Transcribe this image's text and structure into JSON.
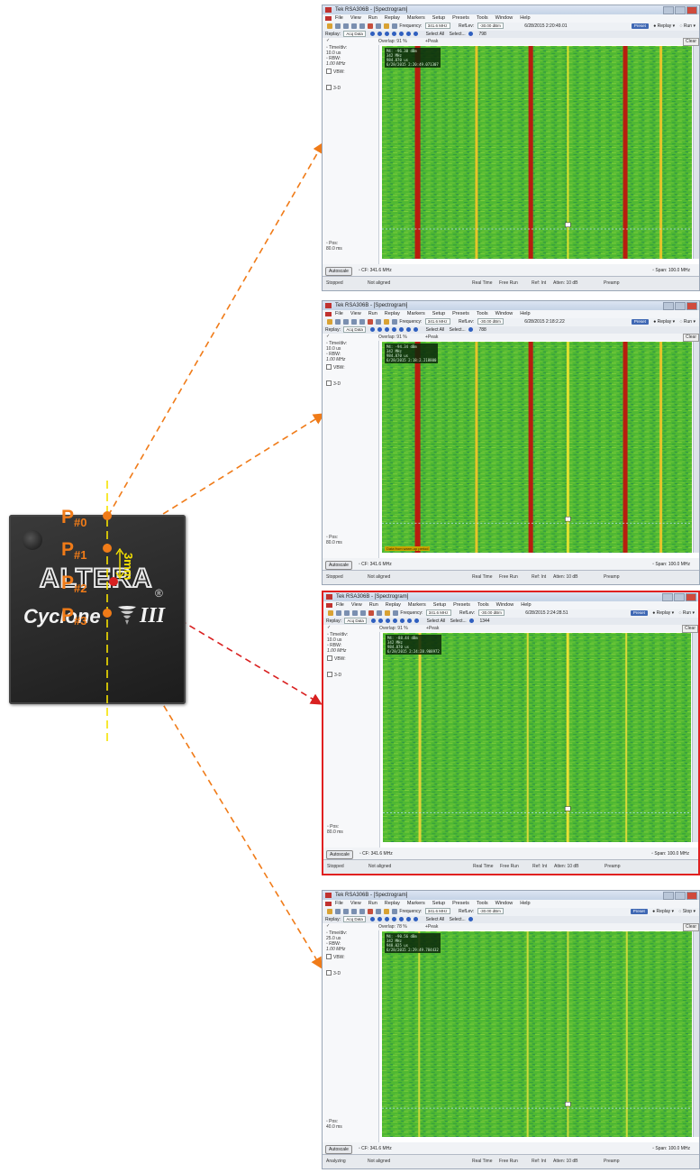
{
  "chip": {
    "brand": "ALTERA",
    "reg_mark": "®",
    "product": "Cyclone",
    "product_suffix": "III",
    "distance": "3mm",
    "probes": [
      {
        "prefix": "P",
        "sub": "#0"
      },
      {
        "prefix": "P",
        "sub": "#1"
      },
      {
        "prefix": "P",
        "sub": "#2"
      },
      {
        "prefix": "P",
        "sub": "#3"
      }
    ],
    "colors": {
      "probe": "#f07b18",
      "axis": "#f5e200",
      "highlight_arrow": "#d92020"
    }
  },
  "common": {
    "title": "Tek RSA306B - [Spectrogram]",
    "menu": [
      "File",
      "View",
      "Run",
      "Replay",
      "Markers",
      "Setup",
      "Presets",
      "Tools",
      "Window",
      "Help"
    ],
    "frequency_label": "Frequency:",
    "frequency_value": "341.6 MHz",
    "ref_label": "RefLev:",
    "ref_value": "-30.00 dBm",
    "preset": "Preset",
    "replay_btn": "Replay",
    "replay_label": "Replay:",
    "replay_source": "Acq Data",
    "select_all": "Select All",
    "select": "Select...",
    "overlap_label": "Overlap:",
    "detector": "+Peak",
    "clear": "Clear",
    "time_div_label": "Time/div:",
    "rbw_label": "RBW:",
    "rbw_value": "1.00 MHz",
    "vbw_label": "VBW:",
    "three_d": "3-D",
    "pos_label": "Pos:",
    "autoscale": "Autoscale",
    "cf": "CF: 341.6 MHz",
    "span": "Span: 100.0 MHz",
    "status_align": "Not aligned",
    "status_mode": "Real Time",
    "status_run": "Free Run",
    "status_ref": "Ref: Int",
    "status_atten": "Atten: 10 dB",
    "status_preamp": "Preamp"
  },
  "windows": [
    {
      "run": "Run",
      "record_count": "798",
      "datetime": "6/28/2015 2:20:49.01",
      "overlap": "91 %",
      "time_div": "10.0 us",
      "pos": "80.0 ms",
      "status": "Stopped",
      "legend": "M4: -96.30 dBm\n342 MHz\n984.870 us\n6/28/2015 2:20:49.071307",
      "warning": "",
      "lines": [
        {
          "f": 0.115,
          "c": "#b81d0f",
          "w": 6
        },
        {
          "f": 0.305,
          "c": "#e6c42a",
          "w": 3
        },
        {
          "f": 0.48,
          "c": "#b81d0f",
          "w": 5
        },
        {
          "f": 0.6,
          "c": "#dfe030",
          "w": 2
        },
        {
          "f": 0.785,
          "c": "#b81d0f",
          "w": 5
        },
        {
          "f": 0.9,
          "c": "#e6c42a",
          "w": 3
        }
      ]
    },
    {
      "run": "Run",
      "record_count": "788",
      "datetime": "6/28/2015 2:18:2.22",
      "overlap": "91 %",
      "time_div": "10.0 us",
      "pos": "80.0 ms",
      "status": "Stopped",
      "legend": "M4: -94.34 dBm\n342 MHz\n984.870 us\n6/28/2015 2:18:2.218800",
      "warning": "Data from warm-up period",
      "lines": [
        {
          "f": 0.115,
          "c": "#b81d0f",
          "w": 6
        },
        {
          "f": 0.305,
          "c": "#e6c42a",
          "w": 3
        },
        {
          "f": 0.48,
          "c": "#b81d0f",
          "w": 5
        },
        {
          "f": 0.6,
          "c": "#dfe030",
          "w": 3
        },
        {
          "f": 0.785,
          "c": "#b81d0f",
          "w": 5
        },
        {
          "f": 0.9,
          "c": "#e6c42a",
          "w": 3
        }
      ]
    },
    {
      "run": "Run",
      "record_count": "1344",
      "datetime": "6/28/2015 2:24:28.51",
      "overlap": "91 %",
      "time_div": "10.0 us",
      "pos": "80.0 ms",
      "status": "Stopped",
      "legend": "M4: -88.44 dBm\n342 MHz\n984.870 us\n6/28/2015 2:24:28.908972",
      "warning": "",
      "lines": [
        {
          "f": 0.12,
          "c": "#e6d23a",
          "w": 3
        },
        {
          "f": 0.47,
          "c": "#d8d83a",
          "w": 2
        },
        {
          "f": 0.6,
          "c": "#e8df35",
          "w": 3
        },
        {
          "f": 0.79,
          "c": "#d8d83a",
          "w": 2
        }
      ]
    },
    {
      "run": "Stop",
      "record_count": "",
      "datetime": "",
      "overlap": "78 %",
      "time_div": "25.0 us",
      "pos": "40.0 ms",
      "status": "Analyzing",
      "legend": "M4: -90.56 dBm\n342 MHz\n948.025 us\n6/28/2015 2:29:49.784432",
      "warning": "",
      "lines": [
        {
          "f": 0.12,
          "c": "#c9d93c",
          "w": 2
        },
        {
          "f": 0.47,
          "c": "#c9d93c",
          "w": 2
        },
        {
          "f": 0.6,
          "c": "#c9d93c",
          "w": 2
        },
        {
          "f": 0.79,
          "c": "#c9d93c",
          "w": 2
        }
      ]
    }
  ]
}
